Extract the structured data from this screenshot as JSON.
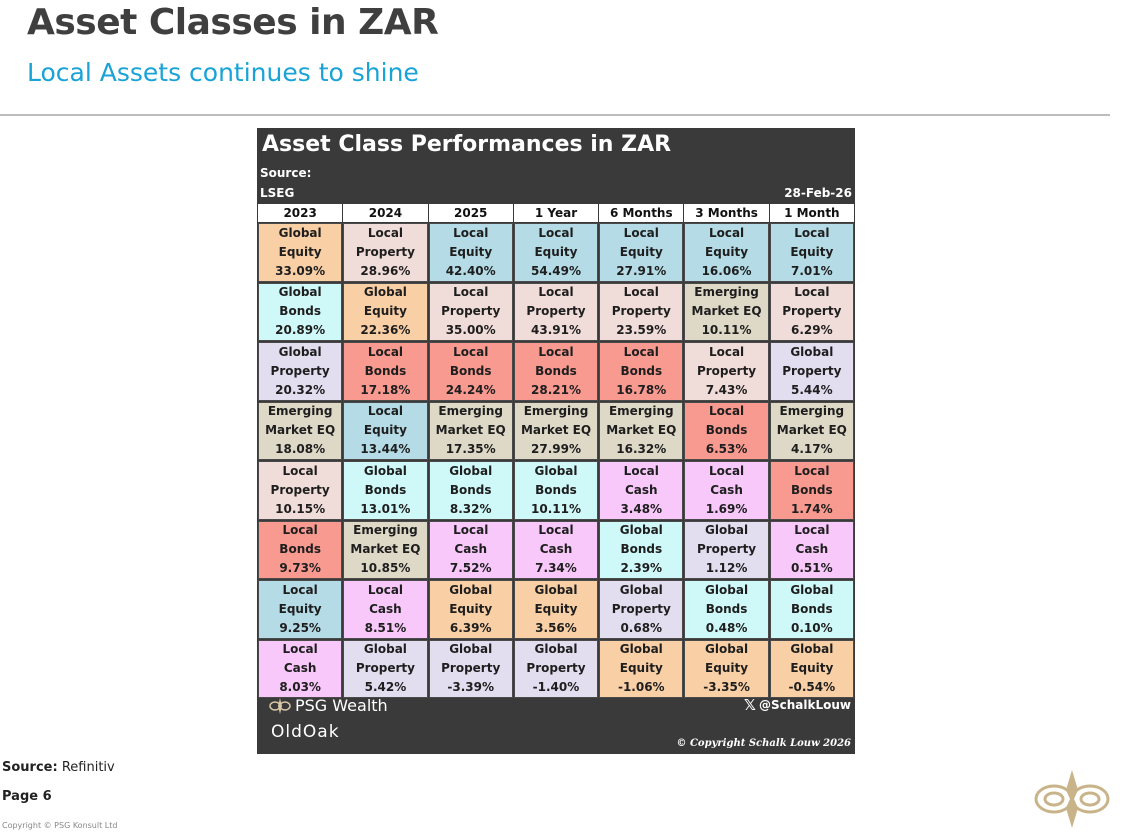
{
  "header": {
    "title": "Asset Classes in ZAR",
    "subtitle": "Local Assets continues to shine"
  },
  "panel": {
    "title": "Asset Class Performances in ZAR",
    "source_label": "Source:",
    "source_value": "LSEG",
    "date": "28-Feb-26",
    "columns": [
      "2023",
      "2024",
      "2025",
      "1 Year",
      "6 Months",
      "3 Months",
      "1 Month"
    ],
    "rows": [
      [
        {
          "l1": "Global",
          "l2": "Equity",
          "v": "33.09%"
        },
        {
          "l1": "Local",
          "l2": "Property",
          "v": "28.96%"
        },
        {
          "l1": "Local",
          "l2": "Equity",
          "v": "42.40%"
        },
        {
          "l1": "Local",
          "l2": "Equity",
          "v": "54.49%"
        },
        {
          "l1": "Local",
          "l2": "Equity",
          "v": "27.91%"
        },
        {
          "l1": "Local",
          "l2": "Equity",
          "v": "16.06%"
        },
        {
          "l1": "Local",
          "l2": "Equity",
          "v": "7.01%"
        }
      ],
      [
        {
          "l1": "Global",
          "l2": "Bonds",
          "v": "20.89%"
        },
        {
          "l1": "Global",
          "l2": "Equity",
          "v": "22.36%"
        },
        {
          "l1": "Local",
          "l2": "Property",
          "v": "35.00%"
        },
        {
          "l1": "Local",
          "l2": "Property",
          "v": "43.91%"
        },
        {
          "l1": "Local",
          "l2": "Property",
          "v": "23.59%"
        },
        {
          "l1": "Emerging",
          "l2": "Market EQ",
          "v": "10.11%"
        },
        {
          "l1": "Local",
          "l2": "Property",
          "v": "6.29%"
        }
      ],
      [
        {
          "l1": "Global",
          "l2": "Property",
          "v": "20.32%"
        },
        {
          "l1": "Local",
          "l2": "Bonds",
          "v": "17.18%"
        },
        {
          "l1": "Local",
          "l2": "Bonds",
          "v": "24.24%"
        },
        {
          "l1": "Local",
          "l2": "Bonds",
          "v": "28.21%"
        },
        {
          "l1": "Local",
          "l2": "Bonds",
          "v": "16.78%"
        },
        {
          "l1": "Local",
          "l2": "Property",
          "v": "7.43%"
        },
        {
          "l1": "Global",
          "l2": "Property",
          "v": "5.44%"
        }
      ],
      [
        {
          "l1": "Emerging",
          "l2": "Market EQ",
          "v": "18.08%"
        },
        {
          "l1": "Local",
          "l2": "Equity",
          "v": "13.44%"
        },
        {
          "l1": "Emerging",
          "l2": "Market EQ",
          "v": "17.35%"
        },
        {
          "l1": "Emerging",
          "l2": "Market EQ",
          "v": "27.99%"
        },
        {
          "l1": "Emerging",
          "l2": "Market EQ",
          "v": "16.32%"
        },
        {
          "l1": "Local",
          "l2": "Bonds",
          "v": "6.53%"
        },
        {
          "l1": "Emerging",
          "l2": "Market EQ",
          "v": "4.17%"
        }
      ],
      [
        {
          "l1": "Local",
          "l2": "Property",
          "v": "10.15%"
        },
        {
          "l1": "Global",
          "l2": "Bonds",
          "v": "13.01%"
        },
        {
          "l1": "Global",
          "l2": "Bonds",
          "v": "8.32%"
        },
        {
          "l1": "Global",
          "l2": "Bonds",
          "v": "10.11%"
        },
        {
          "l1": "Local",
          "l2": "Cash",
          "v": "3.48%"
        },
        {
          "l1": "Local",
          "l2": "Cash",
          "v": "1.69%"
        },
        {
          "l1": "Local",
          "l2": "Bonds",
          "v": "1.74%"
        }
      ],
      [
        {
          "l1": "Local",
          "l2": "Bonds",
          "v": "9.73%"
        },
        {
          "l1": "Emerging",
          "l2": "Market EQ",
          "v": "10.85%"
        },
        {
          "l1": "Local",
          "l2": "Cash",
          "v": "7.52%"
        },
        {
          "l1": "Local",
          "l2": "Cash",
          "v": "7.34%"
        },
        {
          "l1": "Global",
          "l2": "Bonds",
          "v": "2.39%"
        },
        {
          "l1": "Global",
          "l2": "Property",
          "v": "1.12%"
        },
        {
          "l1": "Local",
          "l2": "Cash",
          "v": "0.51%"
        }
      ],
      [
        {
          "l1": "Local",
          "l2": "Equity",
          "v": "9.25%"
        },
        {
          "l1": "Local",
          "l2": "Cash",
          "v": "8.51%"
        },
        {
          "l1": "Global",
          "l2": "Equity",
          "v": "6.39%"
        },
        {
          "l1": "Global",
          "l2": "Equity",
          "v": "3.56%"
        },
        {
          "l1": "Global",
          "l2": "Property",
          "v": "0.68%"
        },
        {
          "l1": "Global",
          "l2": "Bonds",
          "v": "0.48%"
        },
        {
          "l1": "Global",
          "l2": "Bonds",
          "v": "0.10%"
        }
      ],
      [
        {
          "l1": "Local",
          "l2": "Cash",
          "v": "8.03%"
        },
        {
          "l1": "Global",
          "l2": "Property",
          "v": "5.42%"
        },
        {
          "l1": "Global",
          "l2": "Property",
          "v": "-3.39%"
        },
        {
          "l1": "Global",
          "l2": "Property",
          "v": "-1.40%"
        },
        {
          "l1": "Global",
          "l2": "Equity",
          "v": "-1.06%"
        },
        {
          "l1": "Global",
          "l2": "Equity",
          "v": "-3.35%"
        },
        {
          "l1": "Global",
          "l2": "Equity",
          "v": "-0.54%"
        }
      ]
    ],
    "asset_colors": {
      "Global Equity": "#f9cfa6",
      "Local Property": "#f0dcd8",
      "Local Equity": "#b4dbe6",
      "Global Bonds": "#cff8f8",
      "Emerging Market EQ": "#ded8c6",
      "Global Property": "#e2def0",
      "Local Bonds": "#f99a91",
      "Local Cash": "#f7c8f9"
    },
    "footer": {
      "brand_psg": "PSG Wealth",
      "brand_oldoak": "OldOak",
      "social_handle": "@SchalkLouw",
      "social_icon": "x-icon",
      "copyright": "© Copyright Schalk Louw 2026"
    }
  },
  "footer": {
    "source_label": "Source:",
    "source_value": "Refinitiv",
    "page": "Page 6",
    "copyright": "Copyright © PSG Konsult Ltd"
  }
}
